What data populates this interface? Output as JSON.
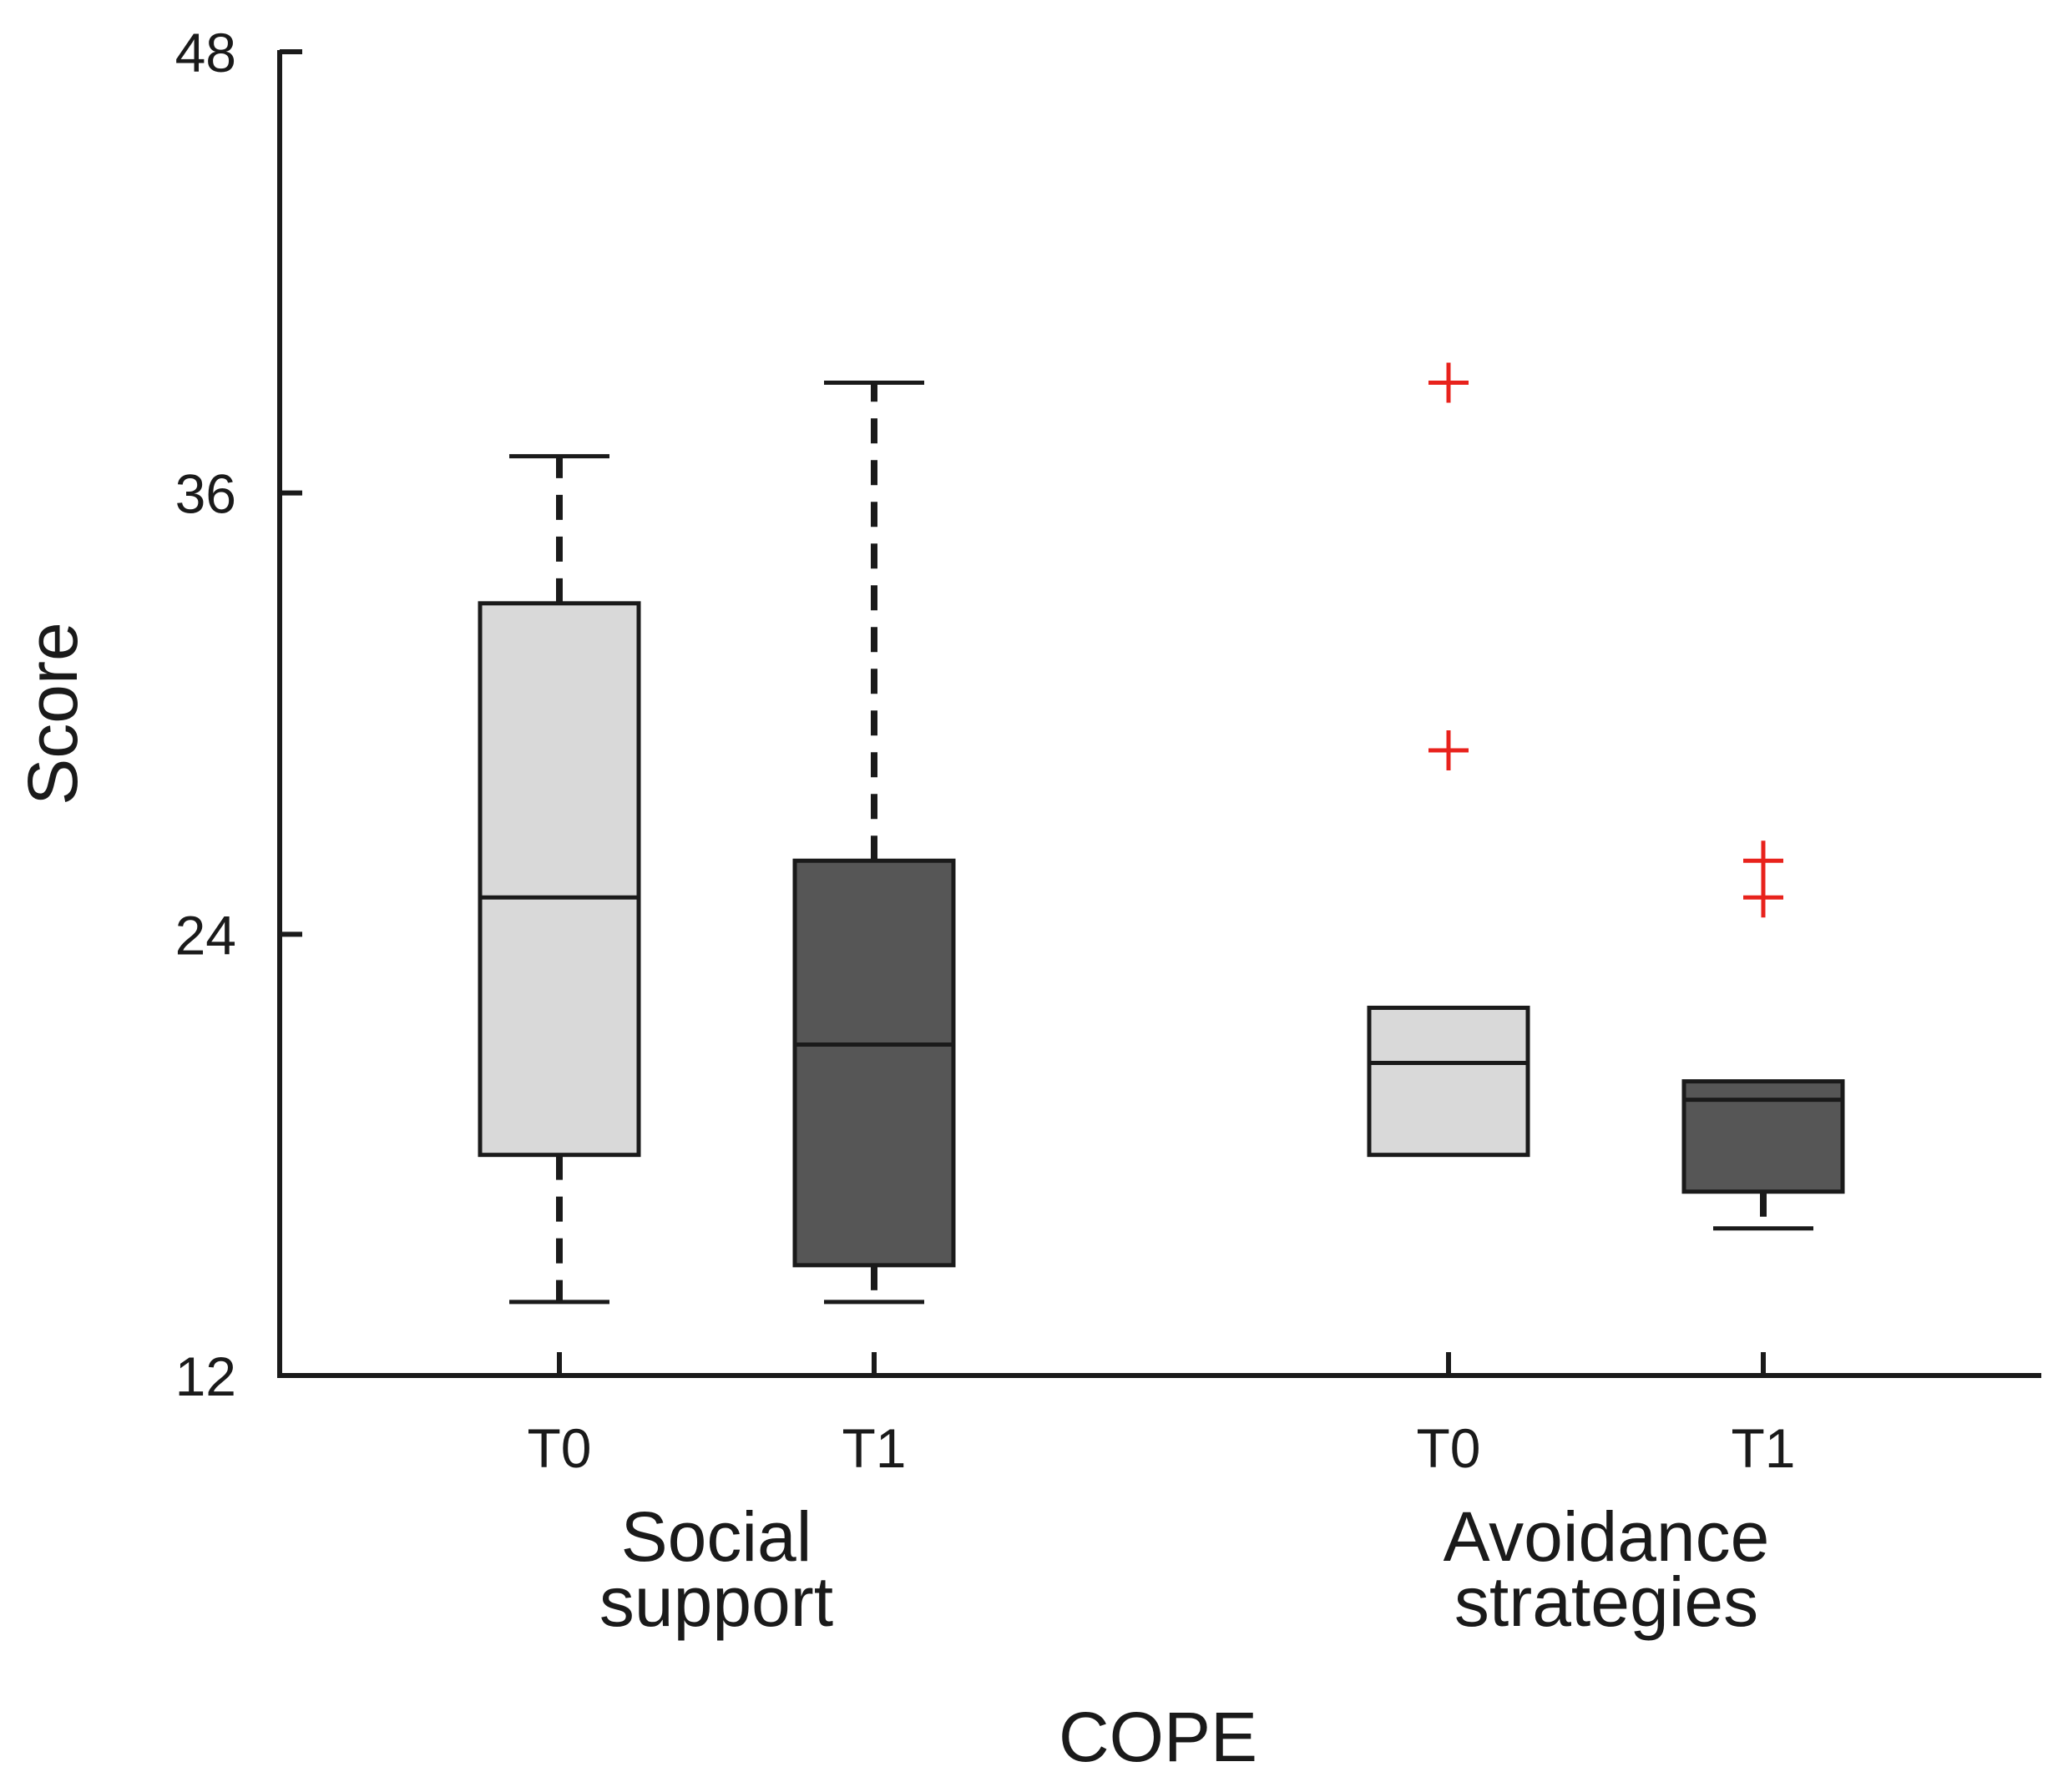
{
  "chart_data": {
    "type": "boxplot",
    "title": "",
    "ylabel": "Score",
    "xlabel": "COPE",
    "ylim": [
      12,
      48
    ],
    "yticks": [
      12,
      24,
      36,
      48
    ],
    "ytick_labels": [
      "12",
      "24",
      "36",
      "48"
    ],
    "groups": [
      {
        "label_lines": [
          "Social",
          "support"
        ],
        "boxes": [
          {
            "label": "T0",
            "fill": "#d9d9d9",
            "whisker_low": 14,
            "q1": 18,
            "median": 25,
            "q3": 33,
            "whisker_high": 37,
            "outliers": []
          },
          {
            "label": "T1",
            "fill": "#565656",
            "whisker_low": 14,
            "q1": 15,
            "median": 21,
            "q3": 26,
            "whisker_high": 39,
            "outliers": []
          }
        ]
      },
      {
        "label_lines": [
          "Avoidance",
          "strategies"
        ],
        "boxes": [
          {
            "label": "T0",
            "fill": "#d9d9d9",
            "whisker_low": 18,
            "q1": 18,
            "median": 20.5,
            "q3": 22,
            "whisker_high": 22,
            "outliers": [
              29,
              39
            ]
          },
          {
            "label": "T1",
            "fill": "#565656",
            "whisker_low": 16,
            "q1": 17,
            "median": 19.5,
            "q3": 20,
            "whisker_high": 20,
            "outliers": [
              25,
              26
            ]
          }
        ]
      }
    ],
    "colors": {
      "axis": "#1a1a1a",
      "outlier": "#e8221c",
      "stroke": "#1a1a1a"
    }
  }
}
